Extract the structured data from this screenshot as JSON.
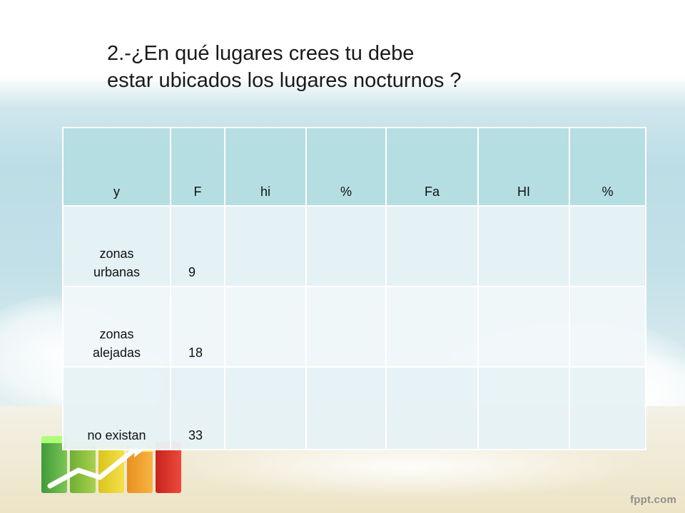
{
  "slide": {
    "title_line1": "2.-¿En qué lugares crees tu debe",
    "title_line2": "estar ubicados los lugares nocturnos ?",
    "footer_brand": "fppt.com"
  },
  "table": {
    "headers": [
      "y",
      "F",
      "hi",
      "%",
      "Fa",
      "HI",
      "%"
    ],
    "rows": [
      {
        "label_line1": "zonas",
        "label_line2": "urbanas",
        "F": "9"
      },
      {
        "label_line1": "zonas",
        "label_line2": "alejadas",
        "F": "18"
      },
      {
        "label_line1": "no existan",
        "label_line2": "",
        "F": "33"
      }
    ]
  },
  "theme": {
    "header_color": "#b4dde2",
    "row_color": "#e6f2f5",
    "accent_green": "#7cc653",
    "accent_red": "#ec4a3b"
  }
}
